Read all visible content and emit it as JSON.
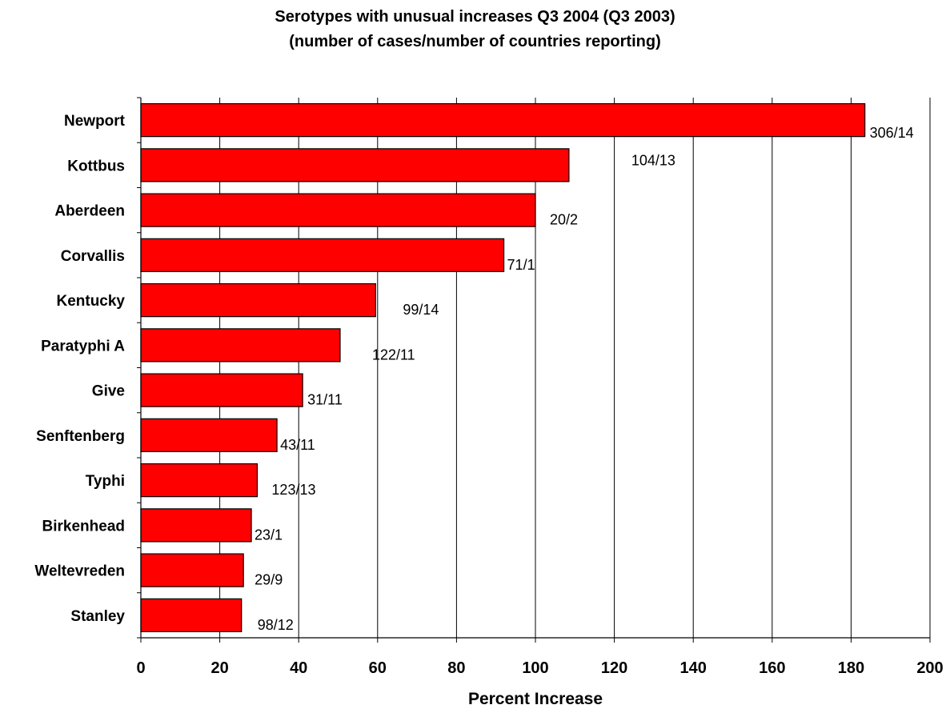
{
  "chart_data": {
    "type": "bar",
    "orientation": "horizontal",
    "title": "Serotypes with unusual increases Q3 2004 (Q3 2003)",
    "subtitle": "(number of cases/number of countries reporting)",
    "xlabel": "Percent Increase",
    "ylabel": "",
    "xlim": [
      0,
      200
    ],
    "x_ticks": [
      0,
      20,
      40,
      60,
      80,
      100,
      120,
      140,
      160,
      180,
      200
    ],
    "grid": "vertical",
    "legend": "none",
    "bar_color": "#ff0000",
    "bar_edge_color": "#000000",
    "categories": [
      "Newport",
      "Kottbus",
      "Aberdeen",
      "Corvallis",
      "Kentucky",
      "Paratyphi A",
      "Give",
      "Senftenberg",
      "Typhi",
      "Birkenhead",
      "Weltevreden",
      "Stanley"
    ],
    "values": [
      183.5,
      108.5,
      100,
      92,
      59.5,
      50.5,
      41,
      34.5,
      29.5,
      28,
      26,
      25.5
    ],
    "data_labels": [
      "306/14",
      "104/13",
      "20/2",
      "71/1",
      "99/14",
      "122/11",
      "31/11",
      "43/11",
      "123/13",
      "23/1",
      "29/9",
      "98/12"
    ]
  }
}
